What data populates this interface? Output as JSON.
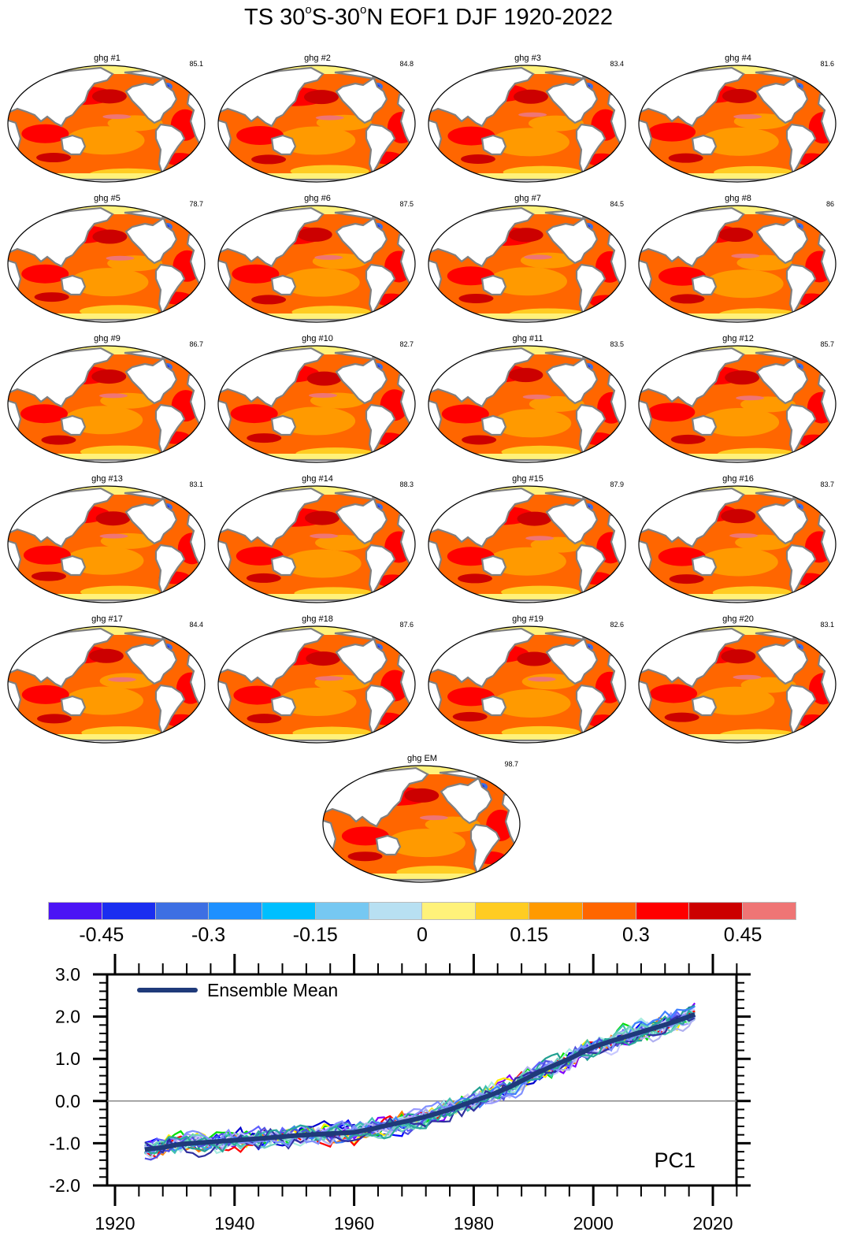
{
  "title": {
    "p1": "TS 30",
    "deg1": "o",
    "p2": "S-30",
    "deg2": "o",
    "p3": "N EOF1 DJF 1920-2022"
  },
  "maps": [
    {
      "label": "ghg #1",
      "pct": "85.1"
    },
    {
      "label": "ghg #2",
      "pct": "84.8"
    },
    {
      "label": "ghg #3",
      "pct": "83.4"
    },
    {
      "label": "ghg #4",
      "pct": "81.6"
    },
    {
      "label": "ghg #5",
      "pct": "78.7"
    },
    {
      "label": "ghg #6",
      "pct": "87.5"
    },
    {
      "label": "ghg #7",
      "pct": "84.5"
    },
    {
      "label": "ghg #8",
      "pct": "86"
    },
    {
      "label": "ghg #9",
      "pct": "86.7"
    },
    {
      "label": "ghg #10",
      "pct": "82.7"
    },
    {
      "label": "ghg #11",
      "pct": "83.5"
    },
    {
      "label": "ghg #12",
      "pct": "85.7"
    },
    {
      "label": "ghg #13",
      "pct": "83.1"
    },
    {
      "label": "ghg #14",
      "pct": "88.3"
    },
    {
      "label": "ghg #15",
      "pct": "87.9"
    },
    {
      "label": "ghg #16",
      "pct": "83.7"
    },
    {
      "label": "ghg #17",
      "pct": "84.4"
    },
    {
      "label": "ghg #18",
      "pct": "87.6"
    },
    {
      "label": "ghg #19",
      "pct": "82.6"
    },
    {
      "label": "ghg #20",
      "pct": "83.1"
    },
    {
      "label": "ghg EM",
      "pct": "98.7"
    }
  ],
  "colorbar": {
    "colors": [
      "#4b14f5",
      "#1a2ef0",
      "#3d6fe3",
      "#1e90ff",
      "#00bfff",
      "#76c8f2",
      "#b8e0f2",
      "#fff27a",
      "#ffcc22",
      "#ff9a00",
      "#ff6600",
      "#ff0000",
      "#cc0000",
      "#ef7575"
    ],
    "labels": [
      "-0.45",
      "-0.3",
      "-0.15",
      "0",
      "0.15",
      "0.3",
      "0.45"
    ]
  },
  "chart_data": {
    "type": "line",
    "title": "PC1",
    "xlabel": "",
    "ylabel": "",
    "xlim": [
      1920,
      2024
    ],
    "ylim": [
      -2.0,
      3.0
    ],
    "xticks": [
      "1920",
      "1940",
      "1960",
      "1980",
      "2000",
      "2020"
    ],
    "yticks": [
      "3.0",
      "2.0",
      "1.0",
      "0.0",
      "-1.0",
      "-2.0"
    ],
    "legend": {
      "label": "Ensemble Mean",
      "position": "top-left",
      "color": "#1f3a7a"
    },
    "ensemble_mean": {
      "x": [
        1925,
        1928,
        1931,
        1935,
        1940,
        1945,
        1950,
        1955,
        1960,
        1963,
        1966,
        1970,
        1973,
        1976,
        1980,
        1983,
        1986,
        1990,
        1993,
        1996,
        2000,
        2003,
        2006,
        2010,
        2013,
        2017
      ],
      "y": [
        -1.15,
        -1.1,
        -1.02,
        -0.98,
        -0.93,
        -0.88,
        -0.82,
        -0.78,
        -0.74,
        -0.66,
        -0.56,
        -0.44,
        -0.33,
        -0.2,
        0.0,
        0.15,
        0.33,
        0.62,
        0.82,
        1.0,
        1.28,
        1.42,
        1.55,
        1.72,
        1.85,
        2.05
      ]
    },
    "member_colors": [
      "#0000ff",
      "#8000ff",
      "#00e000",
      "#ff8000",
      "#ffee00",
      "#ff0000",
      "#0000cd",
      "#9999ff",
      "#20a090",
      "#6060ff",
      "#c8c8ff",
      "#a8ece0",
      "#4080ff",
      "#40c0b0",
      "#5050e0",
      "#b0b0f0",
      "#70d0c0",
      "#3030a0",
      "#8090ff",
      "#2aa89a"
    ],
    "zero_line": 0.0
  }
}
